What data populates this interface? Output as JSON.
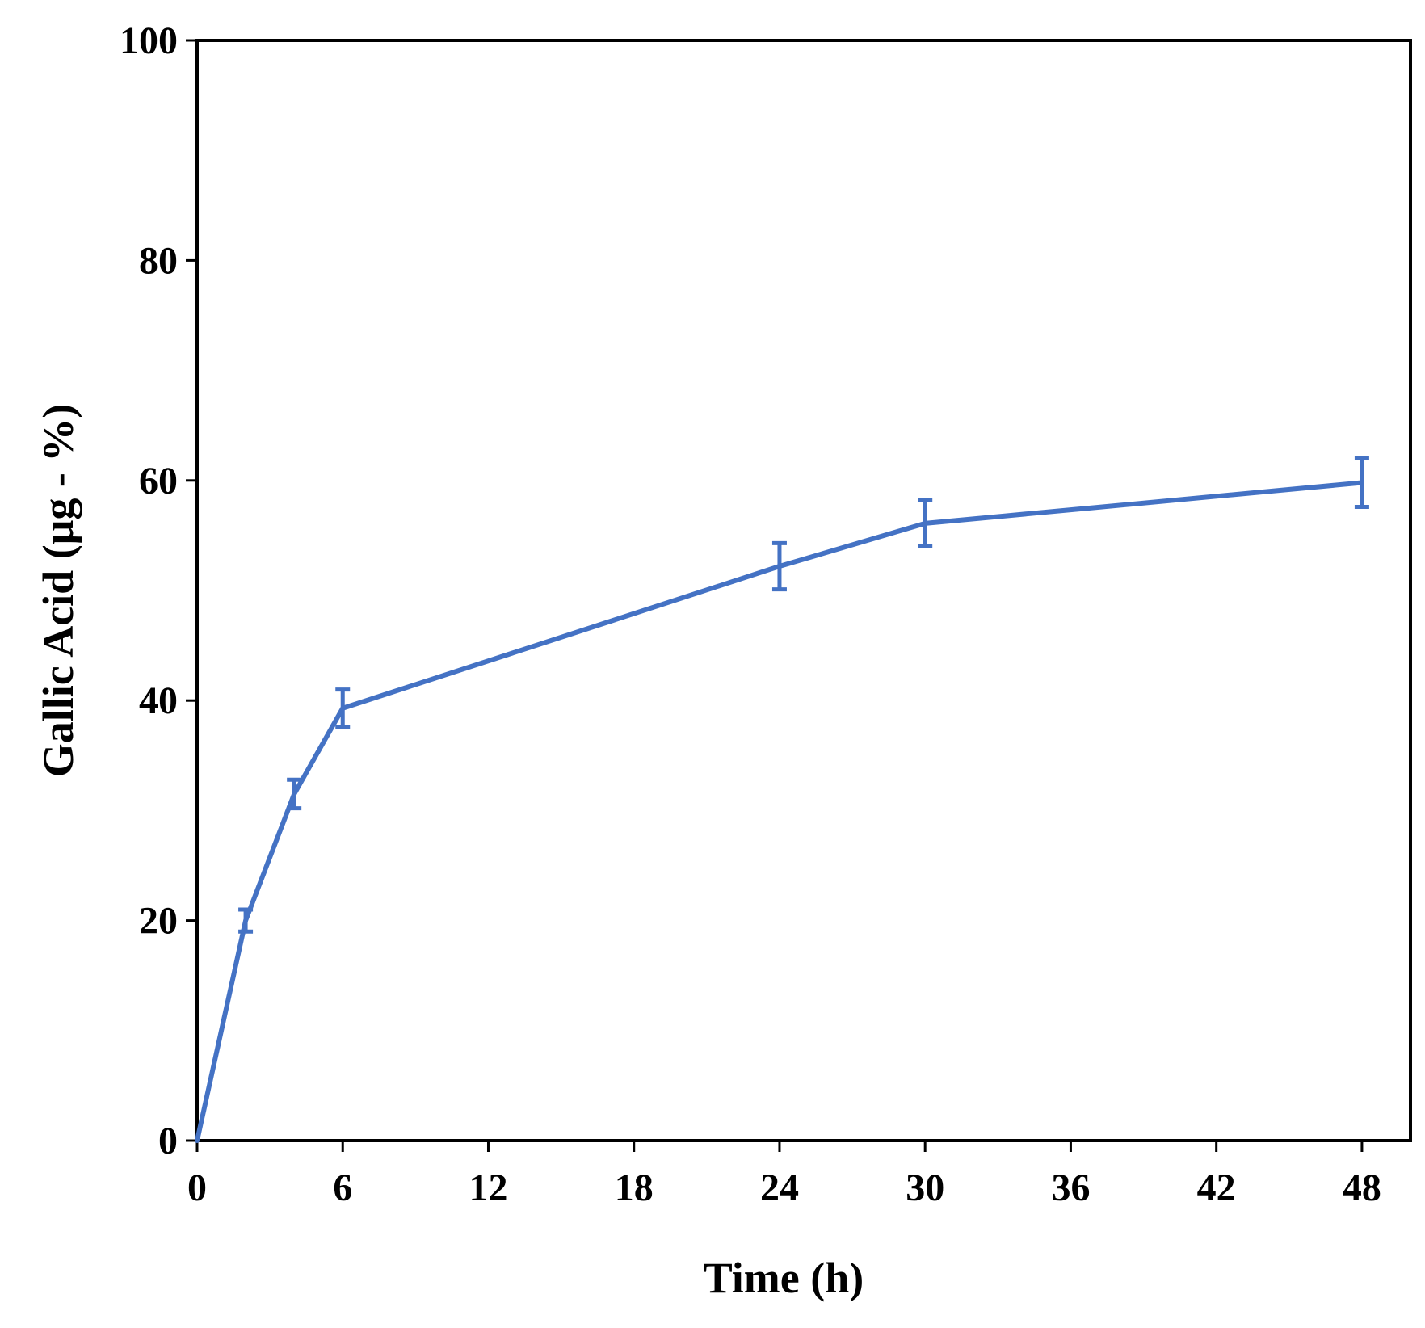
{
  "chart_data": {
    "type": "line",
    "title": "",
    "xlabel": "Time (h)",
    "ylabel": "Gallic Acid (μg - %)",
    "xlim": [
      0,
      50
    ],
    "ylim": [
      0,
      100
    ],
    "xticks": [
      0,
      6,
      12,
      18,
      24,
      30,
      36,
      42,
      48
    ],
    "yticks": [
      0,
      20,
      40,
      60,
      80,
      100
    ],
    "grid": false,
    "legend": "none",
    "series": [
      {
        "color": "#4472C4",
        "x": [
          0,
          2,
          4,
          6,
          24,
          30,
          48
        ],
        "y": [
          0,
          20.0,
          31.5,
          39.3,
          52.2,
          56.1,
          59.8
        ],
        "error": [
          0,
          1.0,
          1.3,
          1.7,
          2.1,
          2.1,
          2.2
        ]
      }
    ]
  }
}
